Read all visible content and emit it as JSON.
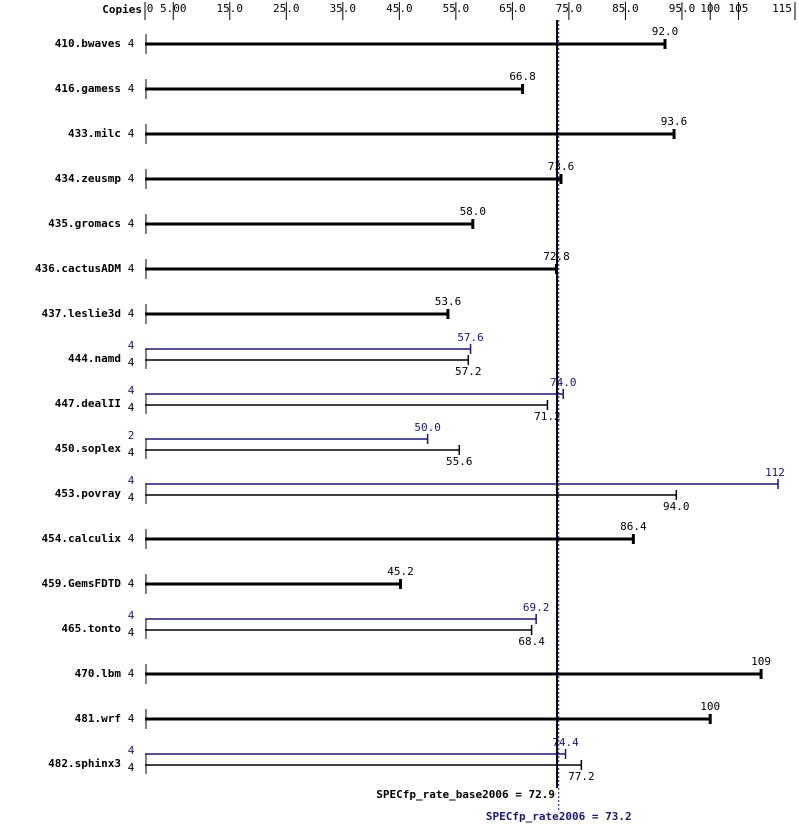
{
  "chart_data": {
    "type": "bar",
    "orientation": "horizontal",
    "copies_header": "Copies",
    "categories": [
      "410.bwaves",
      "416.gamess",
      "433.milc",
      "434.zeusmp",
      "435.gromacs",
      "436.cactusADM",
      "437.leslie3d",
      "444.namd",
      "447.dealII",
      "450.soplex",
      "453.povray",
      "454.calculix",
      "459.GemsFDTD",
      "465.tonto",
      "470.lbm",
      "481.wrf",
      "482.sphinx3"
    ],
    "base": {
      "color": "#000000",
      "copies": [
        4,
        4,
        4,
        4,
        4,
        4,
        4,
        4,
        4,
        4,
        4,
        4,
        4,
        4,
        4,
        4,
        4
      ],
      "values": [
        92.0,
        66.8,
        93.6,
        73.6,
        58.0,
        72.8,
        53.6,
        57.2,
        71.2,
        55.6,
        94.0,
        86.4,
        45.2,
        68.4,
        109,
        100,
        77.2
      ],
      "value_labels": [
        "92.0",
        "66.8",
        "93.6",
        "73.6",
        "58.0",
        "72.8",
        "53.6",
        "57.2",
        "71.2",
        "55.6",
        "94.0",
        "86.4",
        "45.2",
        "68.4",
        "109",
        "100",
        "77.2"
      ]
    },
    "peak": {
      "color": "#191970",
      "copies": [
        null,
        null,
        null,
        null,
        null,
        null,
        null,
        4,
        4,
        2,
        4,
        null,
        null,
        4,
        null,
        null,
        4
      ],
      "values": [
        null,
        null,
        null,
        null,
        null,
        null,
        null,
        57.6,
        74.0,
        50.0,
        112,
        null,
        null,
        69.2,
        null,
        null,
        74.4
      ],
      "value_labels": [
        null,
        null,
        null,
        null,
        null,
        null,
        null,
        "57.6",
        "74.0",
        "50.0",
        "112",
        null,
        null,
        "69.2",
        null,
        null,
        "74.4"
      ]
    },
    "xlim": [
      0,
      115
    ],
    "xticks": [
      0,
      {
        "value": 5,
        "label": "5.00"
      },
      {
        "value": 15,
        "label": "15.0"
      },
      {
        "value": 25,
        "label": "25.0"
      },
      {
        "value": 35,
        "label": "35.0"
      },
      {
        "value": 45,
        "label": "45.0"
      },
      {
        "value": 55,
        "label": "55.0"
      },
      {
        "value": 65,
        "label": "65.0"
      },
      {
        "value": 75,
        "label": "75.0"
      },
      {
        "value": 85,
        "label": "85.0"
      },
      {
        "value": 95,
        "label": "95.0"
      },
      100,
      105,
      115
    ],
    "reference_lines": [
      {
        "label": "SPECfp_rate_base2006 = 72.9",
        "value": 72.9,
        "color": "#000000"
      },
      {
        "label": "SPECfp_rate2006 = 73.2",
        "value": 73.2,
        "color": "#191970"
      }
    ]
  }
}
